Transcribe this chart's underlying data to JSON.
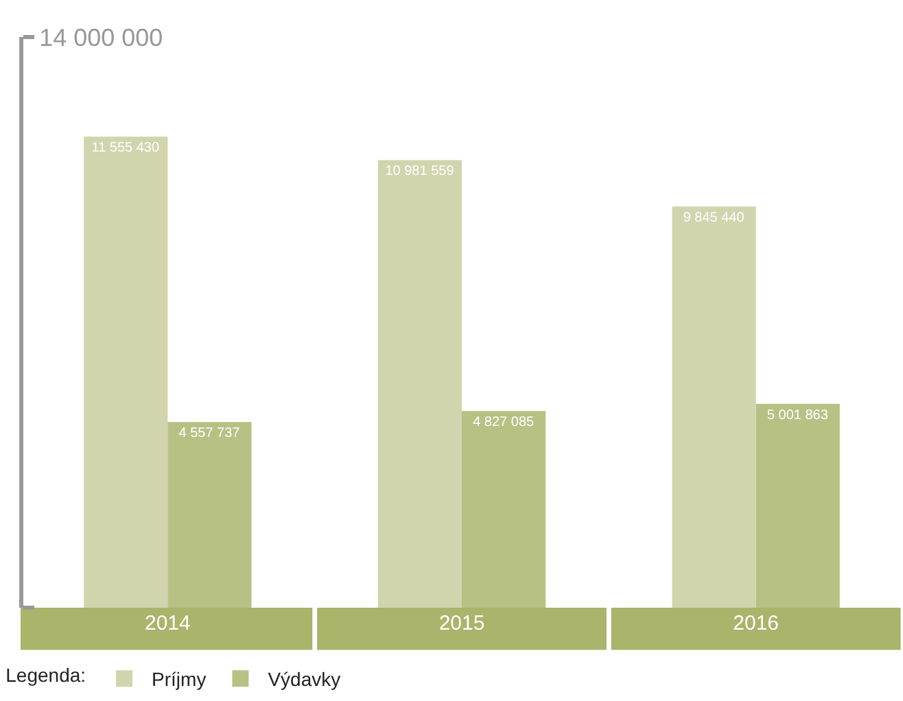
{
  "chart_data": {
    "type": "bar",
    "categories": [
      "2014",
      "2015",
      "2016"
    ],
    "series": [
      {
        "name": "Príjmy",
        "color": "#d0d5ad",
        "values": [
          11555430,
          10981559,
          9845440
        ],
        "value_labels": [
          "11 555 430",
          "10 981 559",
          "9 845 440"
        ]
      },
      {
        "name": "Výdavky",
        "color": "#b8c184",
        "values": [
          4557737,
          4827085,
          5001863
        ],
        "value_labels": [
          "4 557 737",
          "4 827 085",
          "5 001 863"
        ]
      }
    ],
    "ylim": [
      0,
      14000000
    ],
    "yticks": [
      {
        "value": 0,
        "label": null
      },
      {
        "value": 14000000,
        "label": "14 000 000"
      }
    ],
    "legend": "bottom left",
    "legend_title": "Legenda:",
    "grid": false
  }
}
